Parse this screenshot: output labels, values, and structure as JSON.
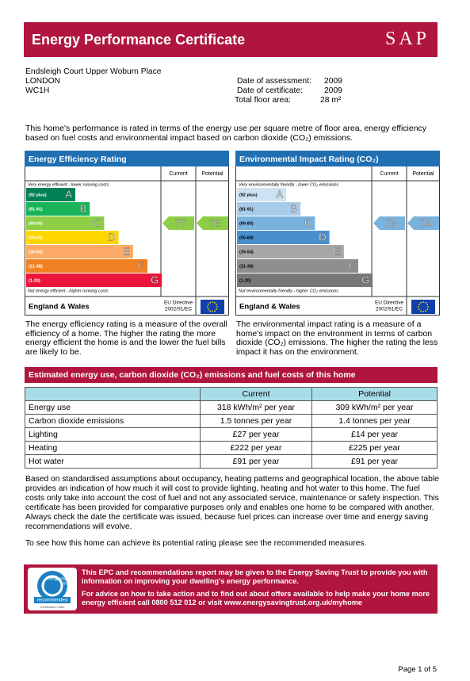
{
  "header": {
    "title": "Energy Performance Certificate",
    "logo": "SAP"
  },
  "address": [
    "Endsleigh Court Upper Woburn Place",
    "LONDON",
    "WC1H"
  ],
  "details": [
    {
      "label": "Date of assessment:",
      "value": "2009"
    },
    {
      "label": "Date of certificate:",
      "value": "2009"
    },
    {
      "label": "Total floor area:",
      "value": "28 m²"
    }
  ],
  "intro": "This home's performance is rated in terms of the energy use per square metre of floor area, energy efficiency based on fuel costs and environmental impact based on carbon dioxide (CO₂) emissions.",
  "ratings": [
    {
      "title": "Energy Efficiency Rating",
      "columns": [
        "Current",
        "Potential"
      ],
      "top_note": "Very energy efficient - lower running costs",
      "bottom_note": "Not energy efficient - higher running costs",
      "bands": [
        {
          "range": "(92 plus)",
          "letter": "A",
          "min": 92,
          "color": "#008054"
        },
        {
          "range": "(81-91)",
          "letter": "B",
          "min": 81,
          "color": "#19b459"
        },
        {
          "range": "(69-80)",
          "letter": "C",
          "min": 69,
          "color": "#8dce46"
        },
        {
          "range": "(55-68)",
          "letter": "D",
          "min": 55,
          "color": "#ffd500"
        },
        {
          "range": "(39-54)",
          "letter": "E",
          "min": 39,
          "color": "#fcaa65"
        },
        {
          "range": "(21-38)",
          "letter": "F",
          "min": 21,
          "color": "#ef8023"
        },
        {
          "range": "(1-20)",
          "letter": "G",
          "min": 1,
          "color": "#e9153b"
        }
      ],
      "current": 77,
      "potential": 78,
      "footer": "England & Wales",
      "directive": [
        "EU Directive",
        "2002/91/EC"
      ],
      "description": "The energy efficiency rating is a measure of the overall efficiency of a home. The higher the rating the more energy efficient the home is and the lower the fuel bills are likely to be."
    },
    {
      "title": "Environmental Impact Rating (CO₂)",
      "columns": [
        "Current",
        "Potential"
      ],
      "top_note": "Very environmentally friendly - lower CO₂ emissions",
      "bottom_note": "Not environmentally friendly - higher CO₂ emissions",
      "bands": [
        {
          "range": "(92 plus)",
          "letter": "A",
          "min": 92,
          "color": "#cde3f4"
        },
        {
          "range": "(81-91)",
          "letter": "B",
          "min": 81,
          "color": "#a8cbe9"
        },
        {
          "range": "(69-80)",
          "letter": "C",
          "min": 69,
          "color": "#7ab2de"
        },
        {
          "range": "(55-68)",
          "letter": "D",
          "min": 55,
          "color": "#4a8fcd"
        },
        {
          "range": "(39-54)",
          "letter": "E",
          "min": 39,
          "color": "#a6a6a6"
        },
        {
          "range": "(21-38)",
          "letter": "F",
          "min": 21,
          "color": "#8e8e8e"
        },
        {
          "range": "(1-20)",
          "letter": "G",
          "min": 1,
          "color": "#777777"
        }
      ],
      "current": 73,
      "potential": 74,
      "footer": "England & Wales",
      "directive": [
        "EU Directive",
        "2002/91/EC"
      ],
      "description": "The environmental impact rating is a measure of a home's impact on the environment in terms of carbon dioxide (CO₂) emissions. The higher the rating the less impact it has on the environment."
    }
  ],
  "costs": {
    "title": "Estimated energy use, carbon dioxide (CO₂) emissions and fuel costs of this home",
    "columns": [
      "Current",
      "Potential"
    ],
    "rows": [
      [
        "Energy use",
        "318 kWh/m² per year",
        "309 kWh/m² per year"
      ],
      [
        "Carbon dioxide emissions",
        "1.5 tonnes per year",
        "1.4 tonnes per year"
      ],
      [
        "Lighting",
        "£27 per year",
        "£14 per year"
      ],
      [
        "Heating",
        "£222 per year",
        "£225 per year"
      ],
      [
        "Hot water",
        "£91 per year",
        "£91 per year"
      ]
    ]
  },
  "notes": [
    "Based on standardised assumptions about occupancy, heating patterns and geographical location, the above table provides an indication of how much it will cost to provide lighting, heating and hot water to this home. The fuel costs only take into account the cost of fuel and not any associated service, maintenance or safety inspection. This certificate has been provided for comparative purposes only and enables one home to be compared with another. Always check the date the certificate was issued, because fuel prices can increase over time and energy saving recommendations will evolve.",
    "To see how this home can achieve its potential rating please see the recommended measures."
  ],
  "banner": {
    "logo": [
      "energy",
      "saving",
      "trust"
    ],
    "badge": "recommended",
    "mark": "Certification mark",
    "lines": [
      "This EPC and recommendations report may be given to the Energy Saving Trust to provide you with information on improving your dwelling's energy performance.",
      "For advice on how to take action and to find out about offers available to help make your home more energy efficient call 0800 512 012 or visit www.energysavingtrust.org.uk/myhome"
    ]
  },
  "footer": "Page 1 of 5"
}
